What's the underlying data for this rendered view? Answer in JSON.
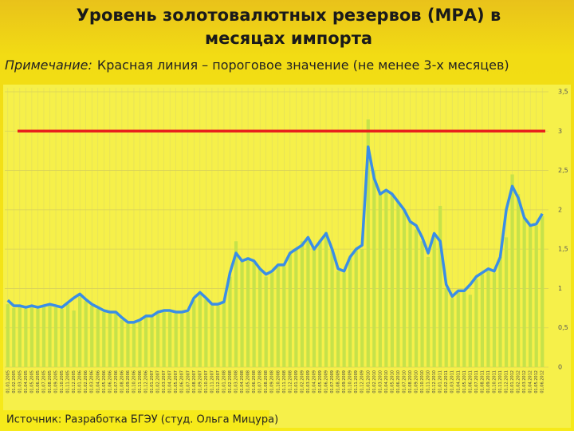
{
  "chart_data": {
    "type": "bar_line",
    "title": [
      "Уровень золотовалютных резервов (МРА) в",
      "месяцах импорта"
    ],
    "note_label": "Примечание:",
    "note": "Красная линия – пороговое значение (не менее 3-х месяцев)",
    "source": "Источник: Разработка БГЭУ (студ. Ольга Мицура)",
    "threshold": 3,
    "threshold_color": "#e8201c",
    "categories": [
      "01.01.2005",
      "01.02.2005",
      "01.03.2005",
      "01.04.2005",
      "01.05.2005",
      "01.06.2005",
      "01.07.2005",
      "01.08.2005",
      "01.09.2005",
      "01.10.2005",
      "01.11.2005",
      "01.12.2005",
      "01.01.2006",
      "01.02.2006",
      "01.03.2006",
      "01.04.2006",
      "01.05.2006",
      "01.06.2006",
      "01.07.2006",
      "01.08.2006",
      "01.09.2006",
      "01.10.2006",
      "01.11.2006",
      "01.12.2006",
      "01.01.2007",
      "01.02.2007",
      "01.03.2007",
      "01.04.2007",
      "01.05.2007",
      "01.06.2007",
      "01.07.2007",
      "01.08.2007",
      "01.09.2007",
      "01.10.2007",
      "01.11.2007",
      "01.12.2007",
      "01.01.2008",
      "01.02.2008",
      "01.03.2008",
      "01.04.2008",
      "01.05.2008",
      "01.06.2008",
      "01.07.2008",
      "01.08.2008",
      "01.09.2008",
      "01.10.2008",
      "01.11.2008",
      "01.12.2008",
      "01.01.2009",
      "01.02.2009",
      "01.03.2009",
      "01.04.2009",
      "01.05.2009",
      "01.06.2009",
      "01.07.2009",
      "01.08.2009",
      "01.09.2009",
      "01.10.2009",
      "01.11.2009",
      "01.12.2009",
      "01.01.2010",
      "01.02.2010",
      "01.03.2010",
      "01.04.2010",
      "01.05.2010",
      "01.06.2010",
      "01.07.2010",
      "01.08.2010",
      "01.09.2010",
      "01.10.2010",
      "01.11.2010",
      "01.12.2010",
      "01.01.2011",
      "01.02.2011",
      "01.03.2011",
      "01.04.2011",
      "01.05.2011",
      "01.06.2011",
      "01.07.2011",
      "01.08.2011",
      "01.09.2011",
      "01.10.2011",
      "01.11.2011",
      "01.12.2011",
      "01.01.2012",
      "01.02.2012",
      "01.03.2012",
      "01.04.2012",
      "01.05.2012",
      "01.06.2012"
    ],
    "series": [
      {
        "kind": "bar",
        "color": "#c6e24a",
        "values": [
          0.8,
          0.75,
          0.78,
          0.74,
          0.78,
          0.74,
          0.78,
          0.8,
          0.76,
          0.74,
          0.8,
          0.72,
          0.9,
          0.84,
          0.78,
          0.74,
          0.7,
          0.68,
          0.68,
          0.6,
          0.55,
          0.55,
          0.58,
          0.64,
          0.64,
          0.68,
          0.7,
          0.7,
          0.68,
          0.68,
          0.7,
          0.85,
          0.92,
          0.86,
          0.78,
          0.78,
          0.82,
          1.15,
          1.6,
          1.35,
          1.4,
          1.35,
          1.25,
          1.15,
          1.2,
          1.28,
          1.28,
          1.45,
          1.5,
          1.6,
          1.62,
          1.5,
          1.62,
          1.72,
          1.5,
          1.22,
          1.2,
          1.4,
          1.5,
          1.5,
          3.15,
          2.5,
          2.2,
          2.25,
          2.2,
          2.1,
          2.0,
          1.85,
          1.75,
          1.6,
          1.4,
          1.65,
          2.05,
          1.0,
          0.88,
          0.95,
          0.95,
          0.92,
          1.12,
          1.18,
          1.22,
          1.2,
          1.4,
          1.65,
          2.45,
          2.2,
          1.9,
          1.8,
          1.8,
          1.92
        ]
      },
      {
        "kind": "line",
        "color": "#3a8ee6",
        "values": [
          0.85,
          0.78,
          0.78,
          0.76,
          0.78,
          0.76,
          0.78,
          0.8,
          0.78,
          0.76,
          0.82,
          0.88,
          0.93,
          0.86,
          0.8,
          0.76,
          0.72,
          0.7,
          0.7,
          0.63,
          0.57,
          0.57,
          0.6,
          0.65,
          0.65,
          0.7,
          0.72,
          0.72,
          0.7,
          0.7,
          0.72,
          0.88,
          0.95,
          0.88,
          0.8,
          0.8,
          0.83,
          1.2,
          1.45,
          1.35,
          1.38,
          1.35,
          1.25,
          1.18,
          1.22,
          1.3,
          1.3,
          1.45,
          1.5,
          1.55,
          1.65,
          1.5,
          1.6,
          1.7,
          1.5,
          1.25,
          1.22,
          1.4,
          1.5,
          1.55,
          2.8,
          2.4,
          2.2,
          2.25,
          2.2,
          2.1,
          2.0,
          1.85,
          1.8,
          1.65,
          1.45,
          1.7,
          1.6,
          1.05,
          0.9,
          0.97,
          0.97,
          1.05,
          1.15,
          1.2,
          1.25,
          1.22,
          1.4,
          2.0,
          2.3,
          2.15,
          1.9,
          1.8,
          1.82,
          1.95
        ]
      }
    ],
    "ylim": [
      0,
      3.5
    ],
    "yticks": [
      0,
      {
        "value": 0.5,
        "label": "0,5"
      },
      1,
      {
        "value": 1.5,
        "label": "1,5"
      },
      2,
      {
        "value": 2.5,
        "label": "2,5"
      },
      3,
      {
        "value": 3.5,
        "label": "3,5"
      }
    ],
    "grid": true
  }
}
